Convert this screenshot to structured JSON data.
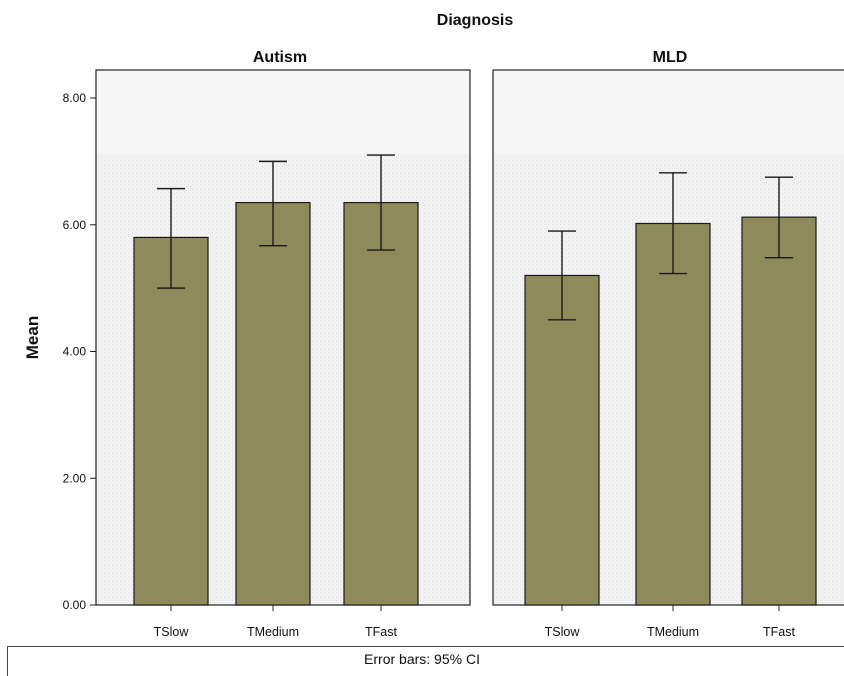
{
  "chart_data": {
    "type": "bar",
    "title": "Diagnosis",
    "ylabel": "Mean",
    "ylim": [
      0,
      8
    ],
    "yticks": [
      "0.00",
      "2.00",
      "4.00",
      "6.00",
      "8.00"
    ],
    "categories": [
      "TSlow",
      "TMedium",
      "TFast"
    ],
    "bar_color": "#8f8a5a",
    "grid": false,
    "panels": [
      {
        "name": "Autism",
        "values": [
          5.8,
          6.35,
          6.35
        ],
        "ci_low": [
          5.0,
          5.67,
          5.6
        ],
        "ci_high": [
          6.57,
          7.0,
          7.1
        ]
      },
      {
        "name": "MLD",
        "values": [
          5.2,
          6.02,
          6.12
        ],
        "ci_low": [
          4.5,
          5.23,
          5.48
        ],
        "ci_high": [
          5.9,
          6.82,
          6.75
        ]
      }
    ]
  },
  "footnote": "Error bars: 95% CI"
}
